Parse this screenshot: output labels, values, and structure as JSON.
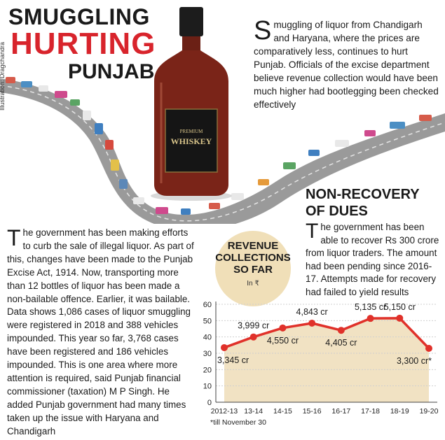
{
  "headline": {
    "line1": "SMUGGLING",
    "line2": "HURTING",
    "line3": "PUNJAB"
  },
  "credit": "Illustration: Dragchandra",
  "bottle": {
    "brand_line1": "PREMIUM",
    "brand_line2": "WHISKEY",
    "colors": {
      "liquid": "#7a2418",
      "cap": "#1c1c1c",
      "label": "#151515",
      "label_text": "#d8c48a"
    }
  },
  "intro": {
    "dropcap": "S",
    "text": "muggling of liquor from Chandigarh and Haryana, where the prices are comparatively less, continues to hurt Punjab. Officials of the excise department believe revenue collection would have been much higher had bootlegging been checked effectively"
  },
  "left_column": {
    "dropcap": "T",
    "text": "he government has been making efforts to curb the sale of illegal liquor. As part of this, changes have been made to the Punjab Excise Act, 1914. Now, transporting more than 12 bottles of liquor has been made a non-bailable offence. Earlier, it was bailable. Data shows 1,086 cases of liquor smuggling were registered in 2018 and 388 vehicles impounded. This year so far, 3,768 cases have been registered and 186 vehicles impounded. This is one area where more attention is required, said Punjab financial commissioner (taxation) M P Singh. He added Punjab government had many times taken up the issue with Haryana and Chandigarh"
  },
  "non_recovery": {
    "heading_line1": "NON-RECOVERY",
    "heading_line2": "OF DUES",
    "dropcap": "T",
    "text": "he government has been able to recover Rs 300 crore from liquor traders. The amount had been pending since 2016-17. Attempts made for recovery had failed to yield results"
  },
  "chart_data": {
    "type": "area",
    "title": "REVENUE COLLECTIONS SO FAR",
    "unit": "In ₹",
    "categories": [
      "2012-13",
      "13-14",
      "14-15",
      "15-16",
      "16-17",
      "17-18",
      "18-19",
      "19-20"
    ],
    "values": [
      33.45,
      39.99,
      45.5,
      48.43,
      44.05,
      51.35,
      51.5,
      33.0
    ],
    "data_labels": [
      "3,345 cr",
      "3,999 cr",
      "4,550 cr",
      "4,843 cr",
      "4,405 cr",
      "5,135 cr",
      "5,150 cr",
      "3,300 cr*"
    ],
    "label_side": [
      "below",
      "above",
      "below",
      "above",
      "below",
      "above",
      "above",
      "below"
    ],
    "yticks": [
      0,
      10,
      20,
      30,
      40,
      50,
      60
    ],
    "ylim": [
      0,
      60
    ],
    "grid": true,
    "colors": {
      "line": "#e0312a",
      "area": "#f1e2c3",
      "marker": "#e0312a"
    },
    "footnote": "*till November 30"
  }
}
